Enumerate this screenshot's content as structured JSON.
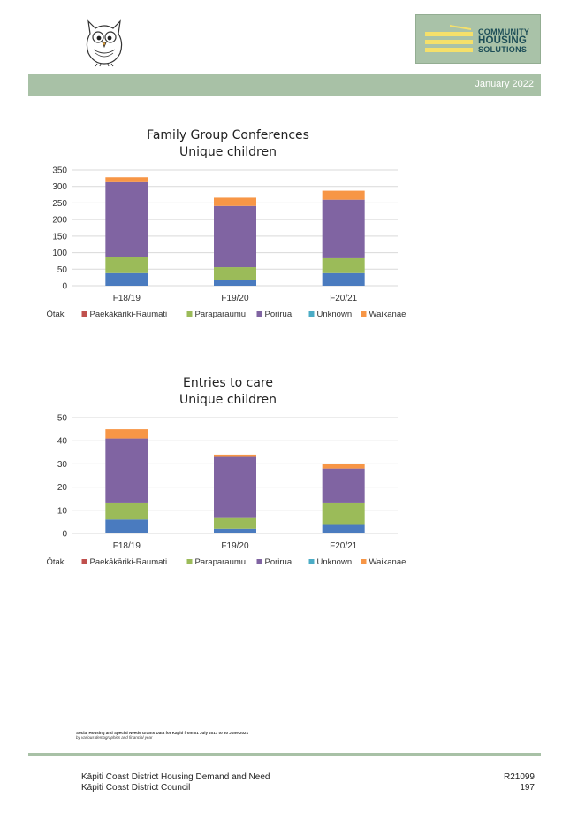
{
  "header": {
    "owl_logo_icon": "owl-icon",
    "chs_logo": {
      "line1": "COMMUNITY",
      "line2": "HOUSING",
      "line3": "SOLUTIONS"
    },
    "date": "January 2022",
    "band_color": "#a8c1a6"
  },
  "chart_data": [
    {
      "type": "bar",
      "stacked": true,
      "title": "Family Group Conferences",
      "subtitle": "Unique children",
      "categories": [
        "F18/19",
        "F19/20",
        "F20/21"
      ],
      "series": [
        {
          "name": "Ōtaki",
          "color": "#4a7bbf",
          "values": [
            38,
            18,
            38
          ]
        },
        {
          "name": "Paekākāriki-Raumati",
          "color": "#c0504d",
          "values": [
            0,
            0,
            0
          ]
        },
        {
          "name": "Paraparaumu",
          "color": "#9bbb59",
          "values": [
            50,
            38,
            45
          ]
        },
        {
          "name": "Porirua",
          "color": "#8064a2",
          "values": [
            225,
            185,
            177
          ]
        },
        {
          "name": "Unknown",
          "color": "#4bacc6",
          "values": [
            0,
            0,
            0
          ]
        },
        {
          "name": "Waikanae",
          "color": "#f79646",
          "values": [
            15,
            25,
            27
          ]
        }
      ],
      "yticks": [
        "0",
        "50",
        "100",
        "150",
        "200",
        "250",
        "300",
        "350"
      ],
      "ylim": [
        0,
        350
      ],
      "grid": true,
      "legend": "bottom"
    },
    {
      "type": "bar",
      "stacked": true,
      "title": "Entries to care",
      "subtitle": "Unique children",
      "categories": [
        "F18/19",
        "F19/20",
        "F20/21"
      ],
      "series": [
        {
          "name": "Ōtaki",
          "color": "#4a7bbf",
          "values": [
            6,
            2,
            4
          ]
        },
        {
          "name": "Paekākāriki-Raumati",
          "color": "#c0504d",
          "values": [
            0,
            0,
            0
          ]
        },
        {
          "name": "Paraparaumu",
          "color": "#9bbb59",
          "values": [
            7,
            5,
            9
          ]
        },
        {
          "name": "Porirua",
          "color": "#8064a2",
          "values": [
            28,
            26,
            15
          ]
        },
        {
          "name": "Unknown",
          "color": "#4bacc6",
          "values": [
            0,
            0,
            0
          ]
        },
        {
          "name": "Waikanae",
          "color": "#f79646",
          "values": [
            4,
            1,
            2
          ]
        }
      ],
      "yticks": [
        "0",
        "10",
        "20",
        "30",
        "40",
        "50"
      ],
      "ylim": [
        0,
        50
      ],
      "grid": true,
      "legend": "bottom"
    }
  ],
  "source": {
    "line1": "Social Housing and Special Needs Grants Data for Kapiti from 01 July 2017 to 30 June 2021",
    "line2": "by various demographics and financial year"
  },
  "footer": {
    "left_line1": "Kāpiti Coast District Housing Demand and Need",
    "left_line2": "Kāpiti Coast District Council",
    "right_line1": "R21099",
    "right_line2": "197"
  }
}
